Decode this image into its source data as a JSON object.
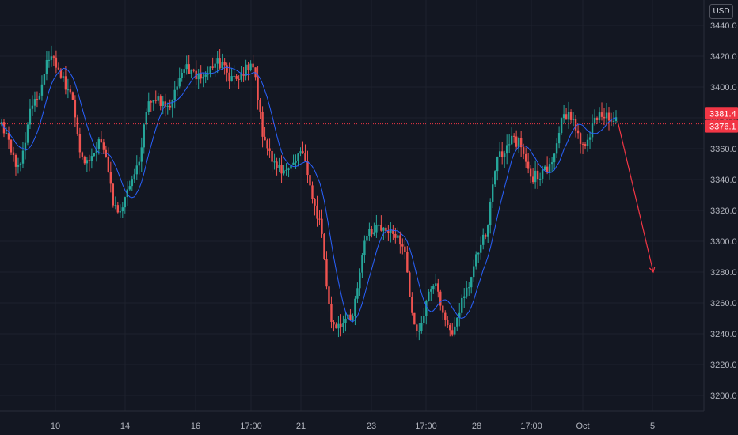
{
  "chart_data": {
    "type": "candlestick",
    "instrument_currency": "USD",
    "x_tick_labels": [
      "10",
      "14",
      "16",
      "17:00",
      "21",
      "23",
      "17:00",
      "28",
      "17:00",
      "Oct",
      "5"
    ],
    "y_tick_labels": [
      "3200.0",
      "3220.0",
      "3240.0",
      "3260.0",
      "3280.0",
      "3300.0",
      "3320.0",
      "3340.0",
      "3360.0",
      "3380.0",
      "3400.0",
      "3420.0",
      "3440.0"
    ],
    "ylim": [
      3192,
      3448
    ],
    "grid": true,
    "price_tags": [
      {
        "label": "3381.4",
        "value": 3381.4,
        "color": "#f23645"
      },
      {
        "label": "3376.1",
        "value": 3376.1,
        "color": "#f23645"
      }
    ],
    "price_line": {
      "value": 3376.1,
      "color": "#f23645",
      "style": "dotted"
    },
    "projection_arrow": {
      "from_price": 3378,
      "to_price": 3280,
      "color": "#f23645"
    },
    "series": [
      {
        "kind": "ohlc",
        "up_color": "#26a69a",
        "down_color": "#ef5350",
        "anchors": [
          3375,
          3348,
          3392,
          3418,
          3398,
          3352,
          3364,
          3318,
          3342,
          3395,
          3386,
          3414,
          3406,
          3416,
          3404,
          3415,
          3358,
          3342,
          3358,
          3318,
          3244,
          3248,
          3305,
          3312,
          3302,
          3242,
          3272,
          3240,
          3268,
          3302,
          3358,
          3366,
          3340,
          3348,
          3384,
          3362,
          3382,
          3378
        ]
      },
      {
        "kind": "moving-average",
        "color": "#2962ff"
      }
    ]
  }
}
